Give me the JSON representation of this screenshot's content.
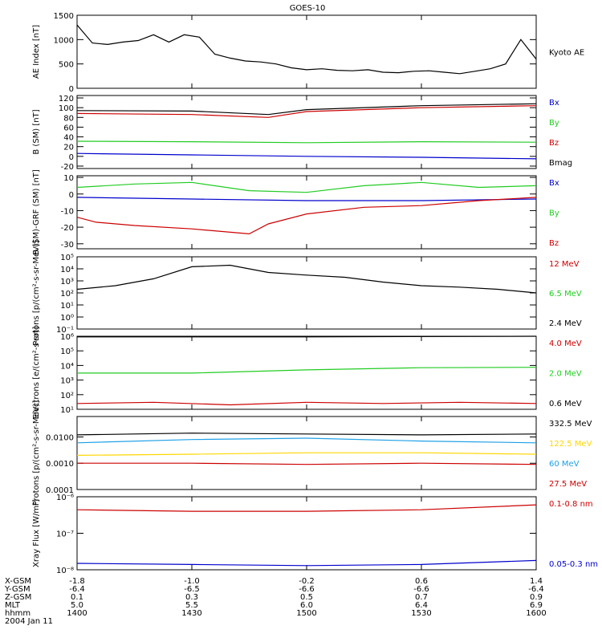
{
  "title": "GOES-10",
  "xaxis": {
    "row_labels": [
      "X-GSM",
      "Y-GSM",
      "Z-GSM",
      "MLT",
      "hhmm",
      "2004 Jan 11"
    ],
    "ticks": [
      {
        "hhmm": "1400",
        "x_gsm": "-1.8",
        "y_gsm": "-6.4",
        "z_gsm": "0.1",
        "mlt": "5.0"
      },
      {
        "hhmm": "1430",
        "x_gsm": "-1.0",
        "y_gsm": "-6.5",
        "z_gsm": "0.3",
        "mlt": "5.5"
      },
      {
        "hhmm": "1500",
        "x_gsm": "-0.2",
        "y_gsm": "-6.6",
        "z_gsm": "0.5",
        "mlt": "6.0"
      },
      {
        "hhmm": "1530",
        "x_gsm": "0.6",
        "y_gsm": "-6.6",
        "z_gsm": "0.7",
        "mlt": "6.4"
      },
      {
        "hhmm": "1600",
        "x_gsm": "1.4",
        "y_gsm": "-6.4",
        "z_gsm": "0.9",
        "mlt": "6.9"
      }
    ]
  },
  "colors": {
    "black": "#000000",
    "blue": "#0000cc",
    "green": "#22cc22",
    "red": "#cc0000",
    "cyan": "#1ea0e6",
    "yellow": "#ffd700"
  },
  "chart_data": [
    {
      "id": "ae",
      "type": "line",
      "ylabel": "AE Index [nT]",
      "yscale": "linear",
      "ylim": [
        0,
        1500
      ],
      "yticks": [
        0,
        500,
        1000,
        1500
      ],
      "ytick_labels": [
        "0",
        "500",
        "1000",
        "1500"
      ],
      "series": [
        {
          "name": "Kyoto AE",
          "color": "#000000",
          "x": [
            0,
            4,
            8,
            12,
            16,
            20,
            24,
            28,
            32,
            36,
            40,
            44,
            48,
            52,
            56,
            60,
            64,
            68,
            72,
            76,
            80,
            84,
            88,
            92,
            96,
            100,
            104,
            108,
            112,
            116,
            120
          ],
          "y": [
            1300,
            930,
            900,
            950,
            980,
            1100,
            950,
            1100,
            1050,
            700,
            620,
            560,
            540,
            500,
            420,
            380,
            400,
            370,
            360,
            380,
            330,
            320,
            350,
            360,
            330,
            300,
            350,
            400,
            500,
            1000,
            600
          ]
        }
      ]
    },
    {
      "id": "bsm",
      "type": "line",
      "ylabel": "B (SM) [nT]",
      "yscale": "linear",
      "ylim": [
        -25,
        125
      ],
      "yticks": [
        -20,
        0,
        20,
        40,
        60,
        80,
        100,
        120
      ],
      "ytick_labels": [
        "-20",
        "0",
        "20",
        "40",
        "60",
        "80",
        "100",
        "120"
      ],
      "series": [
        {
          "name": "Bx",
          "color": "#0000cc",
          "x": [
            0,
            30,
            60,
            90,
            120
          ],
          "y": [
            6,
            3,
            0,
            -2,
            -5
          ]
        },
        {
          "name": "By",
          "color": "#22cc22",
          "x": [
            0,
            30,
            60,
            90,
            120
          ],
          "y": [
            31,
            30,
            28,
            30,
            29
          ]
        },
        {
          "name": "Bz",
          "color": "#cc0000",
          "x": [
            0,
            30,
            50,
            60,
            90,
            120
          ],
          "y": [
            88,
            86,
            80,
            92,
            100,
            104
          ]
        },
        {
          "name": "Bmag",
          "color": "#000000",
          "x": [
            0,
            30,
            50,
            60,
            90,
            120
          ],
          "y": [
            94,
            93,
            86,
            96,
            104,
            108
          ]
        }
      ]
    },
    {
      "id": "bdiff",
      "type": "line",
      "ylabel": "B (SM)-GRF (SM) [nT]",
      "yscale": "linear",
      "ylim": [
        -33,
        11
      ],
      "yticks": [
        -30,
        -20,
        -10,
        0,
        10
      ],
      "ytick_labels": [
        "-30",
        "-20",
        "-10",
        "0",
        "10"
      ],
      "series": [
        {
          "name": "Bx",
          "color": "#0000cc",
          "x": [
            0,
            30,
            60,
            90,
            120
          ],
          "y": [
            -2,
            -3,
            -4,
            -4,
            -3
          ]
        },
        {
          "name": "By",
          "color": "#22cc22",
          "x": [
            0,
            15,
            30,
            45,
            60,
            75,
            90,
            105,
            120
          ],
          "y": [
            4,
            6,
            7,
            2,
            1,
            5,
            7,
            4,
            5
          ]
        },
        {
          "name": "Bz",
          "color": "#cc0000",
          "x": [
            0,
            5,
            15,
            30,
            45,
            50,
            60,
            75,
            90,
            105,
            120
          ],
          "y": [
            -14,
            -17,
            -19,
            -21,
            -24,
            -18,
            -12,
            -8,
            -7,
            -4,
            -2
          ]
        }
      ]
    },
    {
      "id": "protons1",
      "type": "line",
      "ylabel": "Protons [p/(cm²-s-sr-MeV)]",
      "yscale": "log",
      "ylim": [
        0.1,
        100000
      ],
      "yticks": [
        0.1,
        1,
        10,
        100,
        1000,
        10000,
        100000
      ],
      "ytick_labels": [
        "10⁻¹",
        "10⁰",
        "10¹",
        "10²",
        "10³",
        "10⁴",
        "10⁵"
      ],
      "series": [
        {
          "name": "12 MeV",
          "color": "#cc0000",
          "x": [],
          "y": []
        },
        {
          "name": "6.5 MeV",
          "color": "#22cc22",
          "x": [],
          "y": []
        },
        {
          "name": "2.4 MeV",
          "color": "#000000",
          "x": [
            0,
            10,
            20,
            30,
            40,
            50,
            60,
            70,
            80,
            90,
            100,
            110,
            120
          ],
          "y": [
            200,
            400,
            1500,
            15000,
            20000,
            5000,
            3000,
            2000,
            800,
            400,
            300,
            200,
            100
          ]
        }
      ]
    },
    {
      "id": "electrons",
      "type": "line",
      "ylabel": "Electrons [e/(cm²-s-sr)]",
      "yscale": "log",
      "ylim": [
        10,
        1000000
      ],
      "yticks": [
        10,
        100,
        1000,
        10000,
        100000,
        1000000
      ],
      "ytick_labels": [
        "10¹",
        "10²",
        "10³",
        "10⁴",
        "10⁵",
        "10⁶"
      ],
      "series": [
        {
          "name": "4.0 MeV",
          "color": "#cc0000",
          "x": [
            0,
            20,
            40,
            60,
            80,
            100,
            120
          ],
          "y": [
            25,
            30,
            20,
            30,
            25,
            30,
            25
          ]
        },
        {
          "name": "2.0 MeV",
          "color": "#22cc22",
          "x": [
            0,
            30,
            60,
            90,
            120
          ],
          "y": [
            3000,
            3000,
            5000,
            7000,
            7500
          ]
        },
        {
          "name": "0.6 MeV",
          "color": "#000000",
          "x": [
            0,
            60,
            120
          ],
          "y": [
            900000,
            900000,
            1000000
          ]
        }
      ]
    },
    {
      "id": "protons2",
      "type": "line",
      "ylabel": "Protons [p/(cm²-s-sr-MeV)]",
      "yscale": "log",
      "ylim": [
        0.0001,
        0.06
      ],
      "yticks": [
        0.0001,
        0.001,
        0.01
      ],
      "ytick_labels": [
        "0.0001",
        "0.0010",
        "0.0100"
      ],
      "series": [
        {
          "name": "332.5 MeV",
          "color": "#000000",
          "x": [
            0,
            30,
            60,
            90,
            120
          ],
          "y": [
            0.012,
            0.014,
            0.013,
            0.012,
            0.013
          ]
        },
        {
          "name": "122.5 MeV",
          "color": "#ffd700",
          "x": [
            0,
            30,
            60,
            90,
            120
          ],
          "y": [
            0.002,
            0.0022,
            0.0025,
            0.0025,
            0.0022
          ]
        },
        {
          "name": "60 MeV",
          "color": "#1ea0e6",
          "x": [
            0,
            30,
            60,
            90,
            120
          ],
          "y": [
            0.006,
            0.008,
            0.009,
            0.007,
            0.006
          ]
        },
        {
          "name": "27.5 MeV",
          "color": "#cc0000",
          "x": [
            0,
            30,
            60,
            90,
            120
          ],
          "y": [
            0.001,
            0.001,
            0.0009,
            0.001,
            0.0009
          ]
        }
      ]
    },
    {
      "id": "xray",
      "type": "line",
      "ylabel": "Xray Flux [W/m²]",
      "yscale": "log",
      "ylim": [
        1e-08,
        1e-06
      ],
      "yticks": [
        1e-08,
        1e-07,
        1e-06
      ],
      "ytick_labels": [
        "10⁻⁸",
        "10⁻⁷",
        "10⁻⁶"
      ],
      "series": [
        {
          "name": "0.1-0.8 nm",
          "color": "#cc0000",
          "x": [
            0,
            30,
            60,
            90,
            120
          ],
          "y": [
            4.4e-07,
            4e-07,
            4e-07,
            4.4e-07,
            6e-07
          ]
        },
        {
          "name": "0.05-0.3 nm",
          "color": "#0000cc",
          "x": [
            0,
            30,
            60,
            90,
            120
          ],
          "y": [
            1.5e-08,
            1.4e-08,
            1.3e-08,
            1.4e-08,
            1.8e-08
          ]
        }
      ]
    }
  ]
}
